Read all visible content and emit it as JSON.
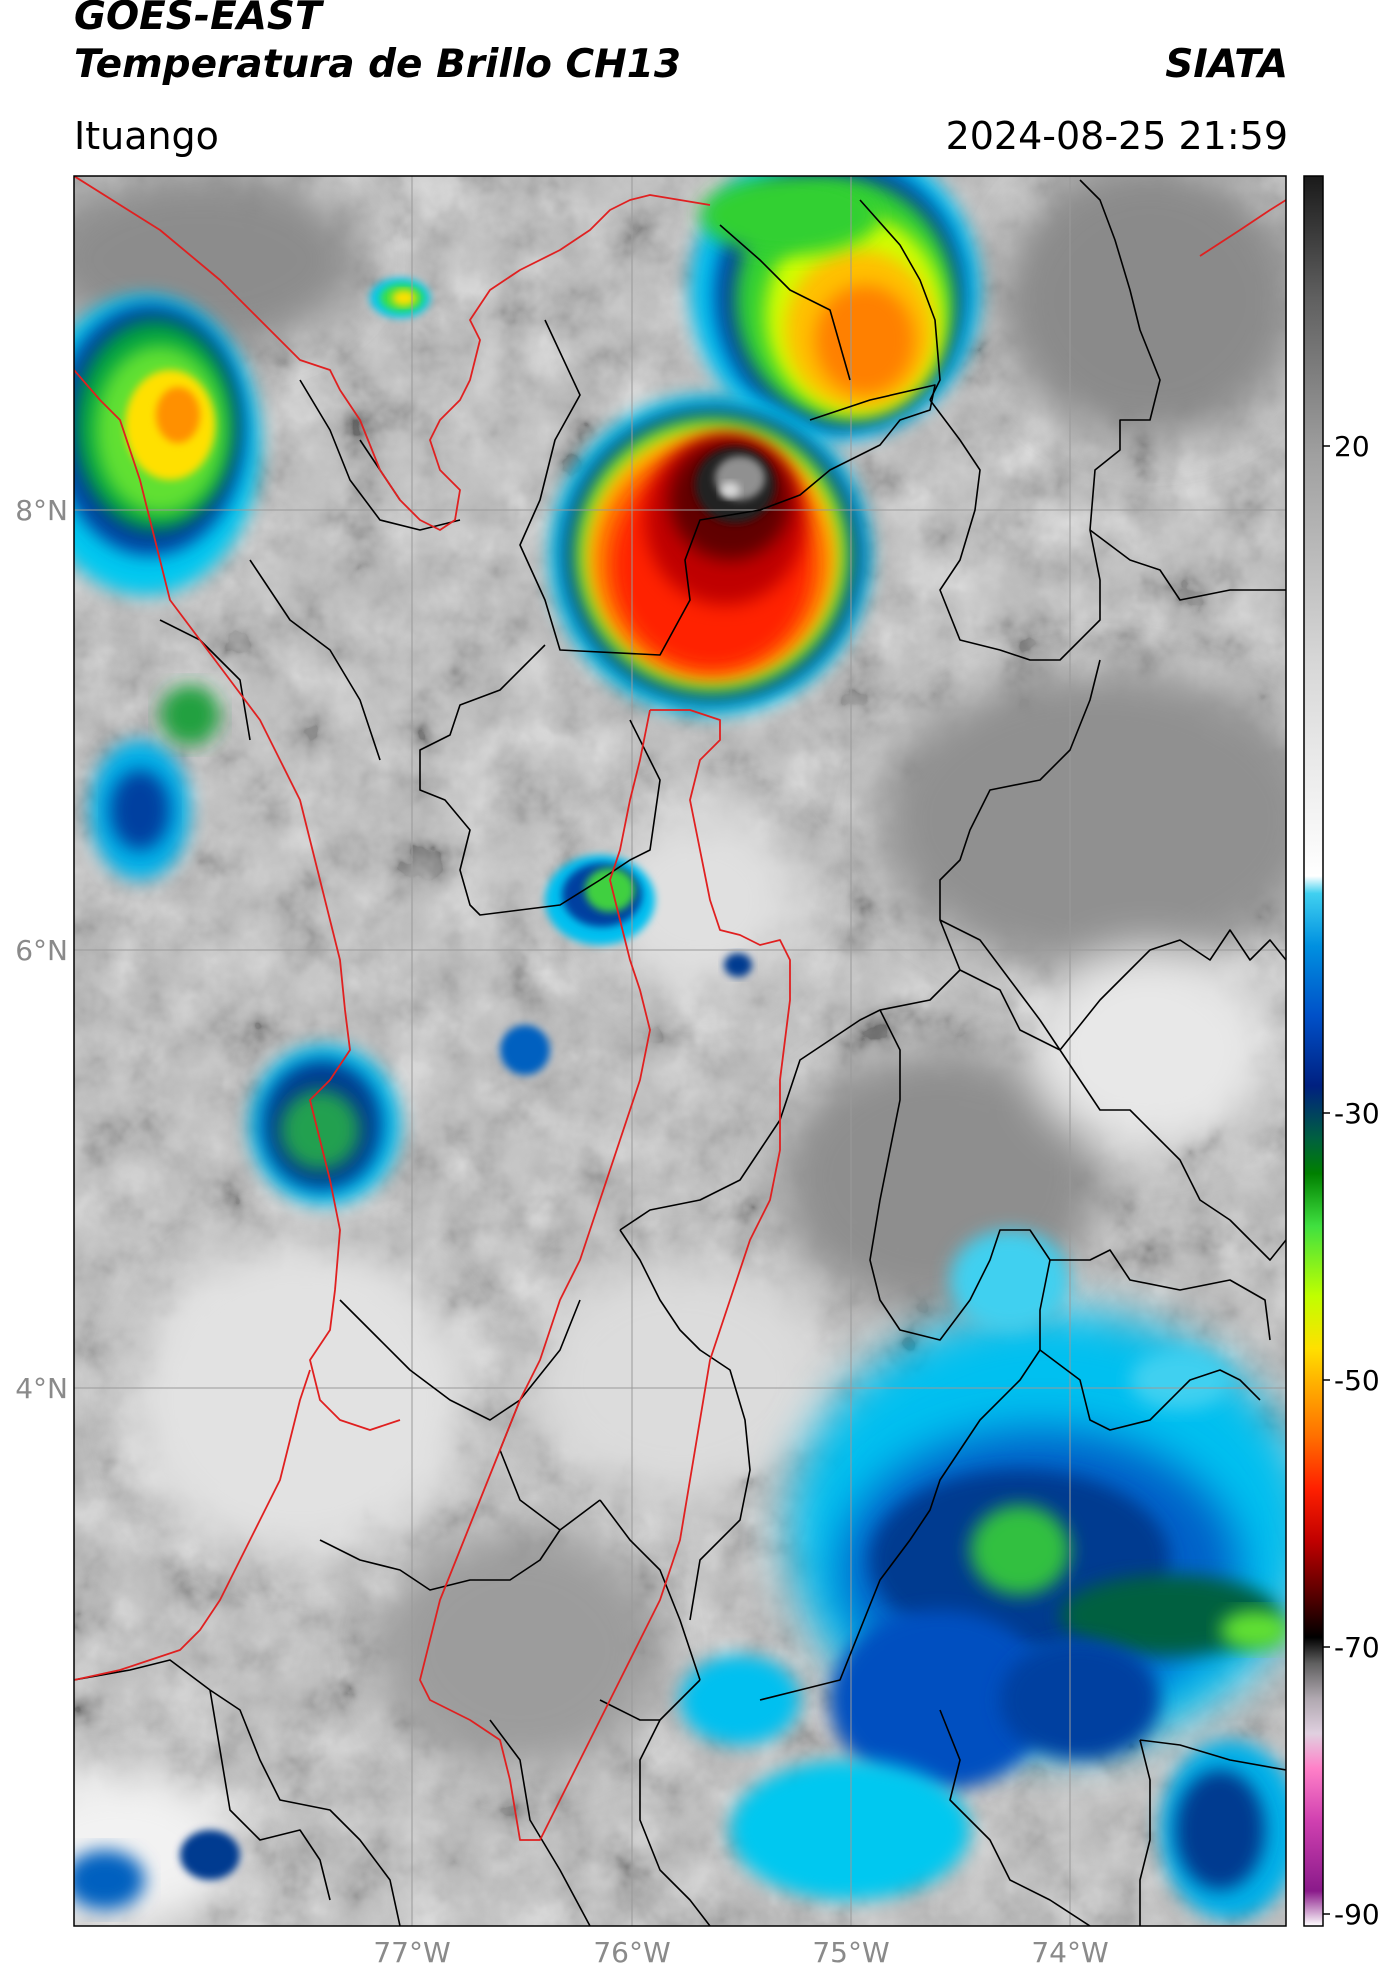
{
  "header": {
    "satellite": "GOES-EAST",
    "product": "Temperatura de Brillo CH13",
    "organization": "SIATA",
    "location": "Ituango",
    "datetime": "2024-08-25 21:59"
  },
  "map": {
    "lat_labels": [
      "8°N",
      "6°N",
      "4°N"
    ],
    "lon_labels": [
      "77°W",
      "76°W",
      "75°W",
      "74°W"
    ],
    "extent": {
      "lon_min": -78.55,
      "lon_max": -73.1,
      "lat_min": 1.8,
      "lat_max": 9.55
    },
    "gridlines": true,
    "boundary_colors": {
      "national_border": "#e02020",
      "admin_border": "#000000",
      "grid": "#9a9a9a"
    }
  },
  "colorbar": {
    "ticks": [
      "20",
      "-30",
      "-50",
      "-70",
      "-90"
    ],
    "scale": [
      "#ffffff",
      "#8a1a8a",
      "#d040b0",
      "#ff70c0",
      "#e0d0e0",
      "#9a9a9a",
      "#303030",
      "#000000",
      "#5a0000",
      "#c00000",
      "#ff2000",
      "#ff7000",
      "#ffb000",
      "#ffe000",
      "#c0ff00",
      "#40e040",
      "#008000",
      "#006040",
      "#002080",
      "#0040c0",
      "#0080e0",
      "#00b0e8",
      "#40d0f0",
      "#ffffff",
      "#e8e8e8",
      "#b0b0b0",
      "#707070",
      "#202020"
    ]
  },
  "cloud_features": [
    {
      "kind": "deep-convection-core",
      "min_brightness_temp_c": -75
    },
    {
      "kind": "convective-cell-northeast",
      "min_brightness_temp_c": -55
    },
    {
      "kind": "convective-cell-northwest",
      "min_brightness_temp_c": -52
    },
    {
      "kind": "cloud-cluster-southeast",
      "min_brightness_temp_c": -40
    }
  ]
}
